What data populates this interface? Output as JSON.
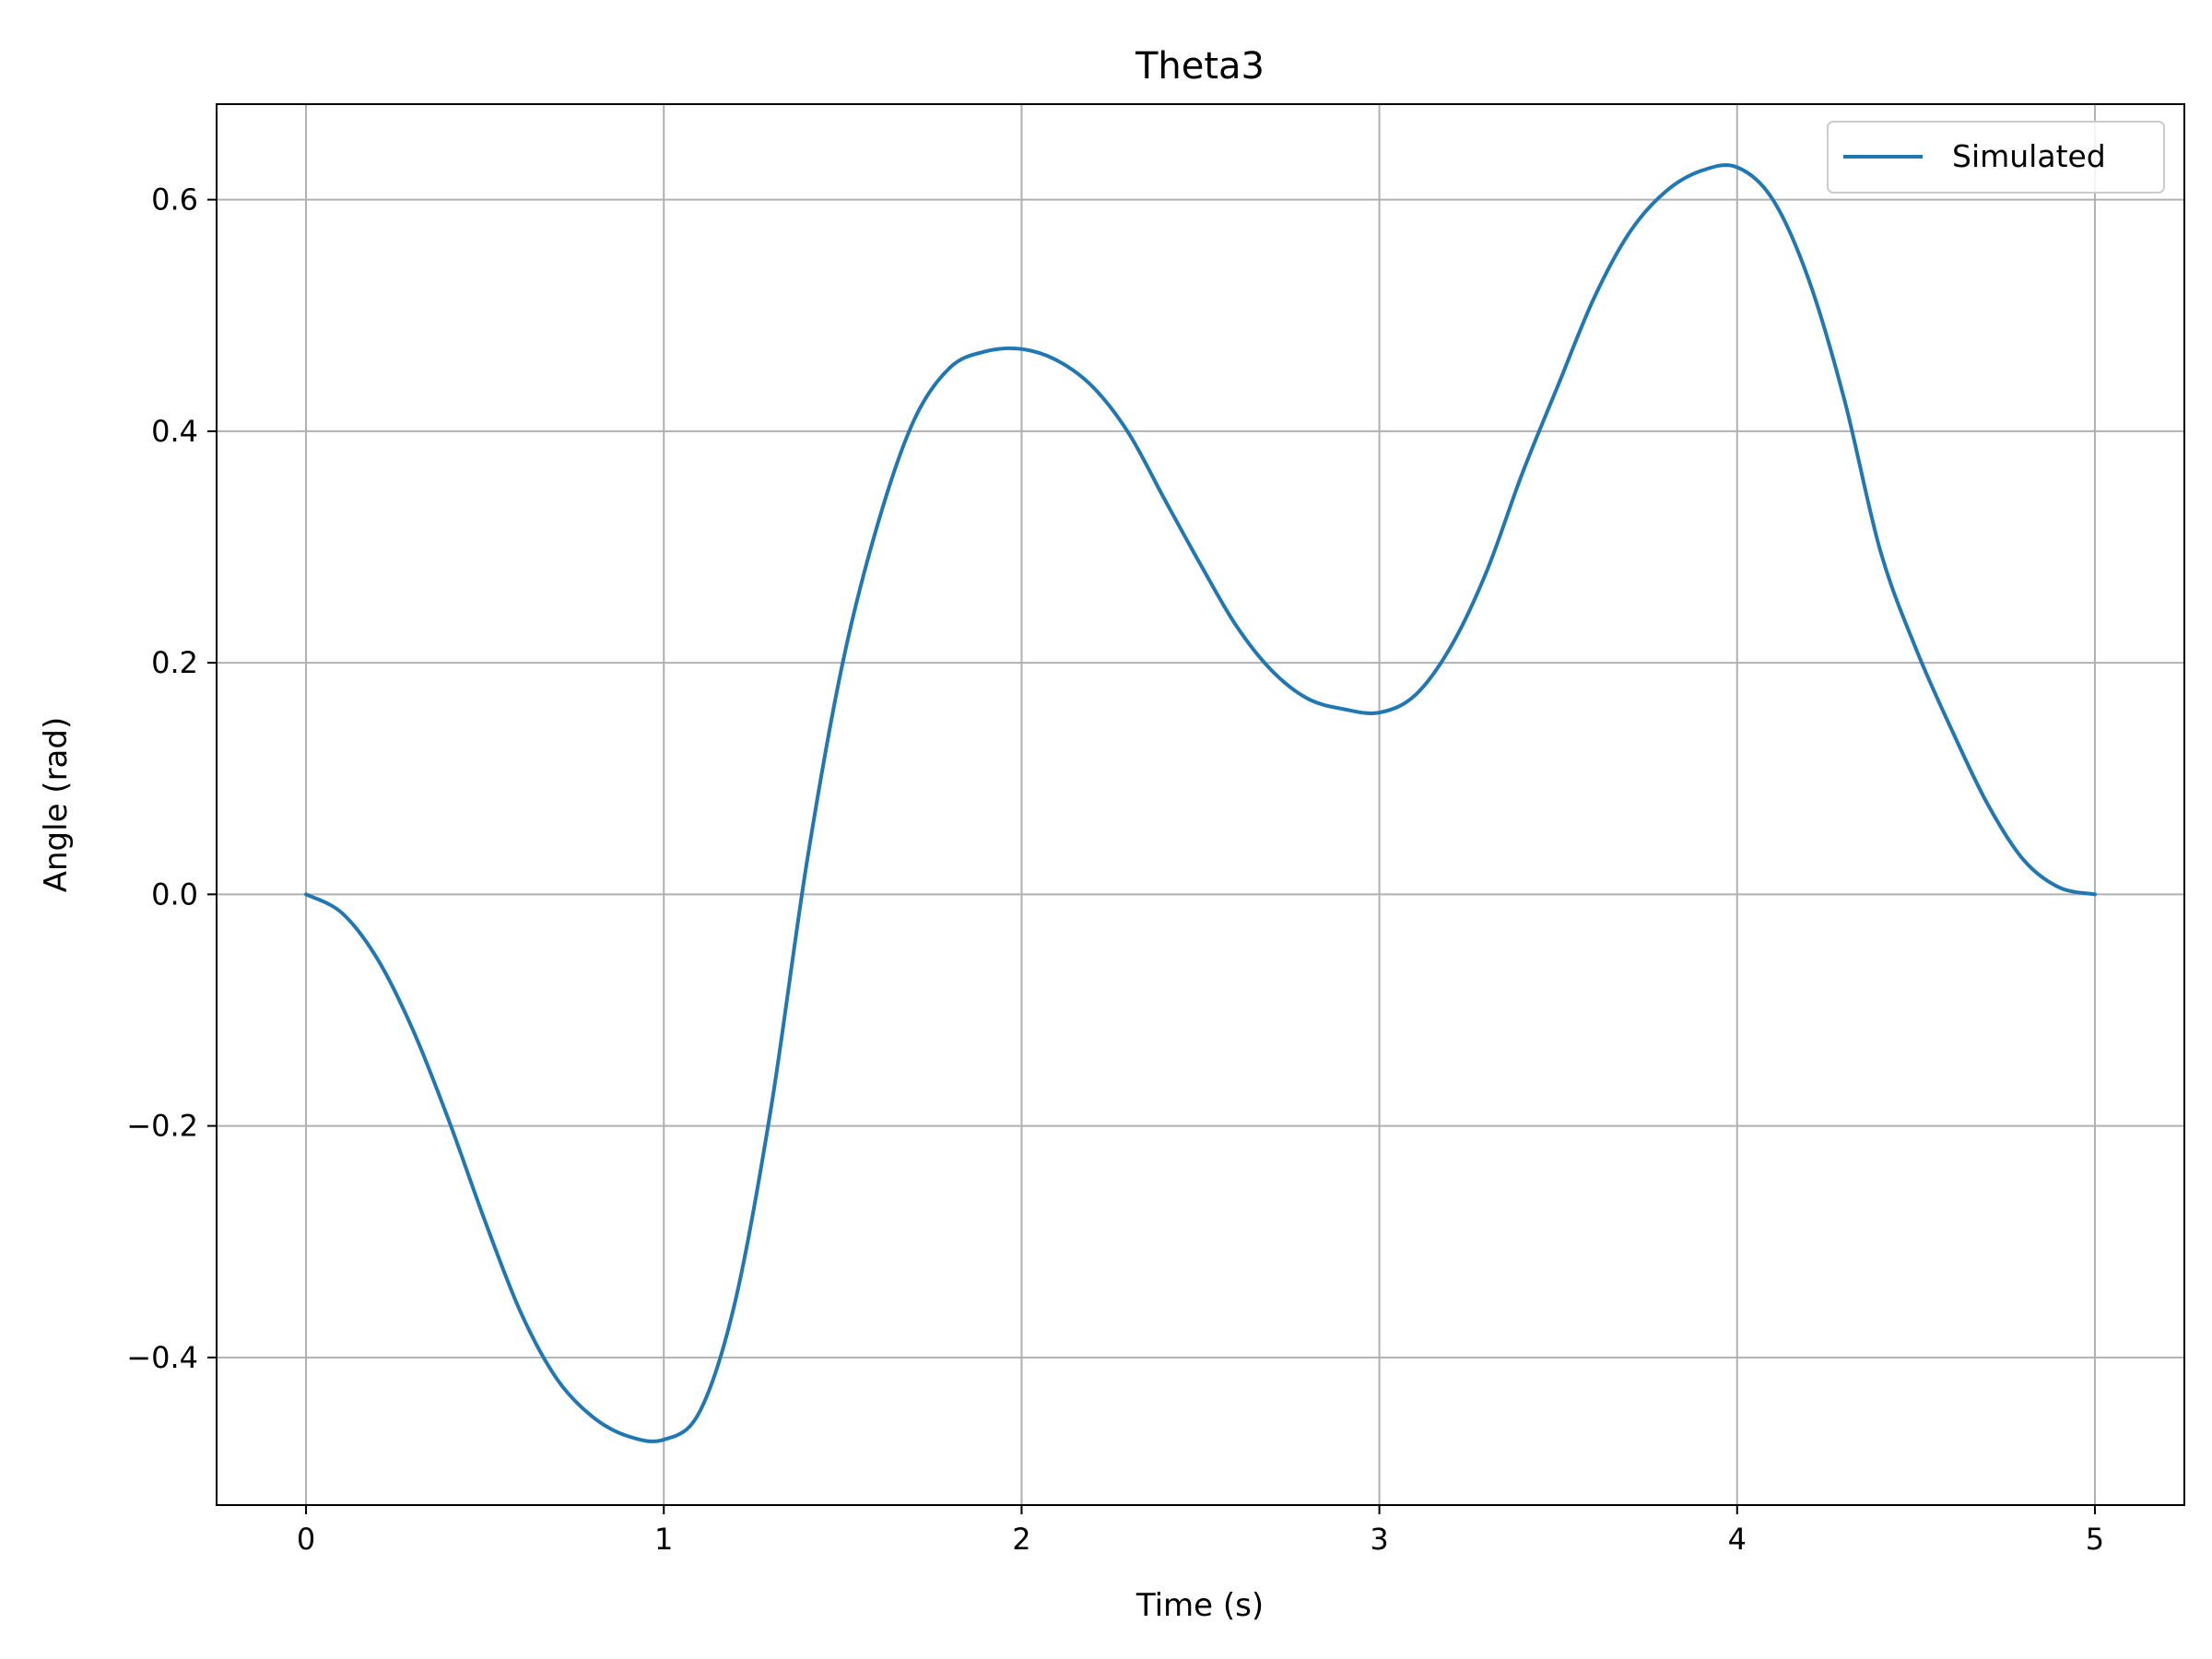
{
  "chart_data": {
    "type": "line",
    "title": "Theta3",
    "xlabel": "Time (s)",
    "ylabel": "Angle (rad)",
    "xlim": [
      -0.25,
      5.25
    ],
    "ylim": [
      -0.5275,
      0.6825
    ],
    "xticks": [
      0,
      1,
      2,
      3,
      4,
      5
    ],
    "xtick_labels": [
      "0",
      "1",
      "2",
      "3",
      "4",
      "5"
    ],
    "yticks": [
      -0.4,
      -0.2,
      0.0,
      0.2,
      0.4,
      0.6
    ],
    "ytick_labels": [
      "−0.4",
      "−0.2",
      "0.0",
      "0.2",
      "0.4",
      "0.6"
    ],
    "grid": true,
    "legend_position": "top-right",
    "series": [
      {
        "name": "Simulated",
        "color": "#1f77b4",
        "x": [
          0,
          0.1,
          0.2,
          0.3,
          0.4,
          0.5,
          0.6,
          0.7,
          0.8,
          0.9,
          1.0,
          1.1,
          1.2,
          1.3,
          1.4,
          1.5,
          1.6,
          1.7,
          1.8,
          1.9,
          2.0,
          2.1,
          2.2,
          2.3,
          2.4,
          2.5,
          2.6,
          2.7,
          2.8,
          2.9,
          3.0,
          3.1,
          3.2,
          3.3,
          3.4,
          3.5,
          3.6,
          3.7,
          3.8,
          3.9,
          4.0,
          4.1,
          4.2,
          4.3,
          4.4,
          4.5,
          4.6,
          4.7,
          4.8,
          4.9,
          5.0
        ],
        "y": [
          0.0,
          -0.016,
          -0.056,
          -0.118,
          -0.196,
          -0.282,
          -0.361,
          -0.418,
          -0.451,
          -0.468,
          -0.471,
          -0.447,
          -0.351,
          -0.184,
          0.028,
          0.2,
          0.322,
          0.41,
          0.455,
          0.469,
          0.471,
          0.461,
          0.438,
          0.398,
          0.341,
          0.285,
          0.232,
          0.193,
          0.169,
          0.16,
          0.157,
          0.172,
          0.214,
          0.279,
          0.364,
          0.44,
          0.515,
          0.572,
          0.607,
          0.625,
          0.628,
          0.6,
          0.531,
          0.427,
          0.297,
          0.212,
          0.142,
          0.078,
          0.03,
          0.006,
          0.0
        ]
      }
    ]
  }
}
